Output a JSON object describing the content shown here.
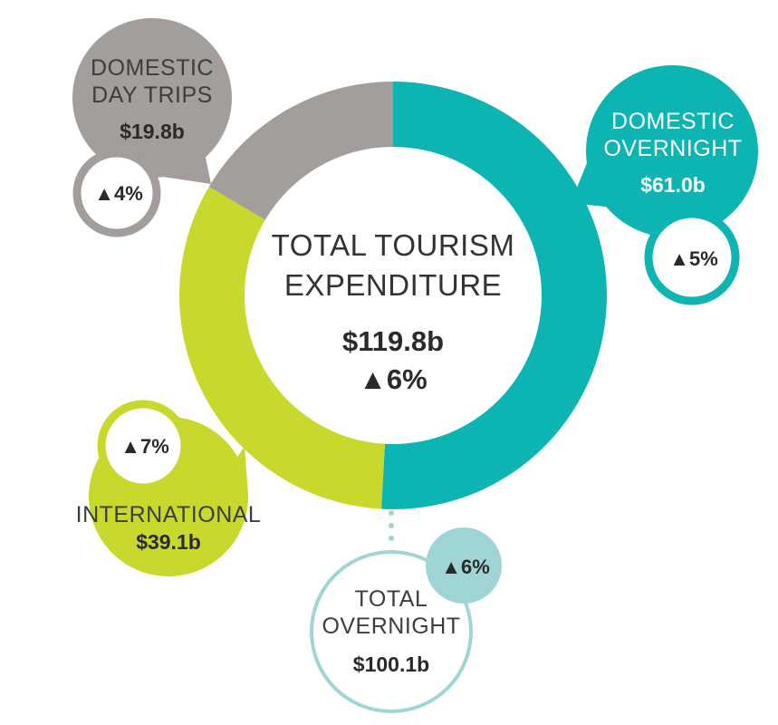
{
  "chart_data": {
    "type": "pie",
    "title_lines": [
      "TOTAL TOURISM",
      "EXPENDITURE"
    ],
    "total_label": "$119.8b",
    "total_change": "▲6%",
    "slices": [
      {
        "key": "domestic_overnight",
        "name_lines": [
          "DOMESTIC",
          "OVERNIGHT"
        ],
        "value": 61.0,
        "value_label": "$61.0b",
        "change_label": "▲5%",
        "color": "#0db5b2"
      },
      {
        "key": "international",
        "name_lines": [
          "INTERNATIONAL"
        ],
        "value": 39.1,
        "value_label": "$39.1b",
        "change_label": "▲7%",
        "color": "#c8d82c"
      },
      {
        "key": "domestic_day_trips",
        "name_lines": [
          "DOMESTIC",
          "DAY TRIPS"
        ],
        "value": 19.8,
        "value_label": "$19.8b",
        "change_label": "▲4%",
        "color": "#a39e9b"
      }
    ],
    "total_overnight": {
      "name_lines": [
        "TOTAL",
        "OVERNIGHT"
      ],
      "value": 100.1,
      "value_label": "$100.1b",
      "change_label": "▲6%",
      "color": "#9fd6d5"
    }
  }
}
